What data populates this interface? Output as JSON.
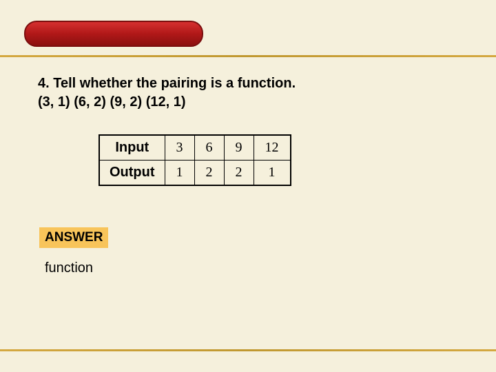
{
  "question": {
    "number": "4.",
    "text": "Tell whether the pairing is a function.",
    "pairs": "(3, 1) (6, 2) (9, 2) (12, 1)"
  },
  "table": {
    "row_headers": [
      "Input",
      "Output"
    ],
    "input_values": [
      "3",
      "6",
      "9",
      "12"
    ],
    "output_values": [
      "1",
      "2",
      "2",
      "1"
    ]
  },
  "answer": {
    "label": "ANSWER",
    "result": "function"
  },
  "colors": {
    "page_bg": "#f5f0dc",
    "header_pill": "#b01818",
    "gold_rule": "#c09830",
    "answer_bg": "#f8c45a"
  }
}
